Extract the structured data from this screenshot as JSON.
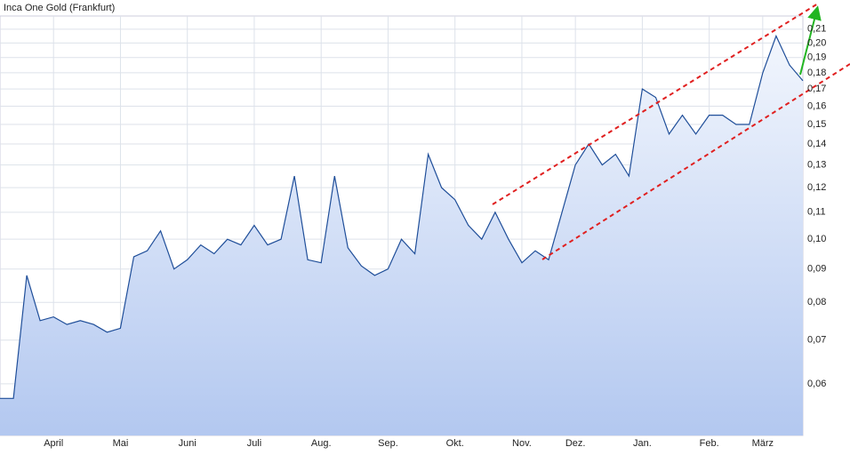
{
  "chart_data": {
    "type": "area-line",
    "title": "Inca One Gold (Frankfurt)",
    "categories": [
      null,
      null,
      null,
      null,
      "April",
      null,
      null,
      null,
      null,
      "Mai",
      null,
      null,
      null,
      null,
      "Juni",
      null,
      null,
      null,
      null,
      "Juli",
      null,
      null,
      null,
      null,
      "Aug.",
      null,
      null,
      null,
      null,
      "Sep.",
      null,
      null,
      null,
      null,
      "Okt.",
      null,
      null,
      null,
      null,
      "Nov.",
      null,
      null,
      null,
      "Dez.",
      null,
      null,
      null,
      null,
      "Jan.",
      null,
      null,
      null,
      null,
      "Feb.",
      null,
      null,
      null,
      "März",
      null,
      null,
      null
    ],
    "values": [
      0.057,
      0.057,
      0.088,
      0.075,
      0.076,
      0.074,
      0.075,
      0.074,
      0.072,
      0.073,
      0.094,
      0.096,
      0.103,
      0.09,
      0.093,
      0.098,
      0.095,
      0.1,
      0.098,
      0.105,
      0.098,
      0.1,
      0.125,
      0.093,
      0.092,
      0.125,
      0.097,
      0.091,
      0.088,
      0.09,
      0.1,
      0.095,
      0.135,
      0.12,
      0.115,
      0.105,
      0.1,
      0.11,
      0.1,
      0.092,
      0.096,
      0.093,
      0.11,
      0.13,
      0.14,
      0.13,
      0.135,
      0.125,
      0.17,
      0.165,
      0.145,
      0.155,
      0.145,
      0.155,
      0.155,
      0.15,
      0.15,
      0.18,
      0.205,
      0.185,
      0.175
    ],
    "color": "#1f4e99",
    "log_y": true,
    "ylim": [
      0.05,
      0.22
    ],
    "yticks": [
      {
        "value": 0.06,
        "label": "0,06"
      },
      {
        "value": 0.07,
        "label": "0,07"
      },
      {
        "value": 0.08,
        "label": "0,08"
      },
      {
        "value": 0.09,
        "label": "0,09"
      },
      {
        "value": 0.1,
        "label": "0,10"
      },
      {
        "value": 0.11,
        "label": "0,11"
      },
      {
        "value": 0.12,
        "label": "0,12"
      },
      {
        "value": 0.13,
        "label": "0,13"
      },
      {
        "value": 0.14,
        "label": "0,14"
      },
      {
        "value": 0.15,
        "label": "0,15"
      },
      {
        "value": 0.16,
        "label": "0,16"
      },
      {
        "value": 0.17,
        "label": "0,17"
      },
      {
        "value": 0.18,
        "label": "0,18"
      },
      {
        "value": 0.19,
        "label": "0,19"
      },
      {
        "value": 0.2,
        "label": "0,20"
      },
      {
        "value": 0.21,
        "label": "0,21"
      }
    ],
    "grid": true
  }
}
